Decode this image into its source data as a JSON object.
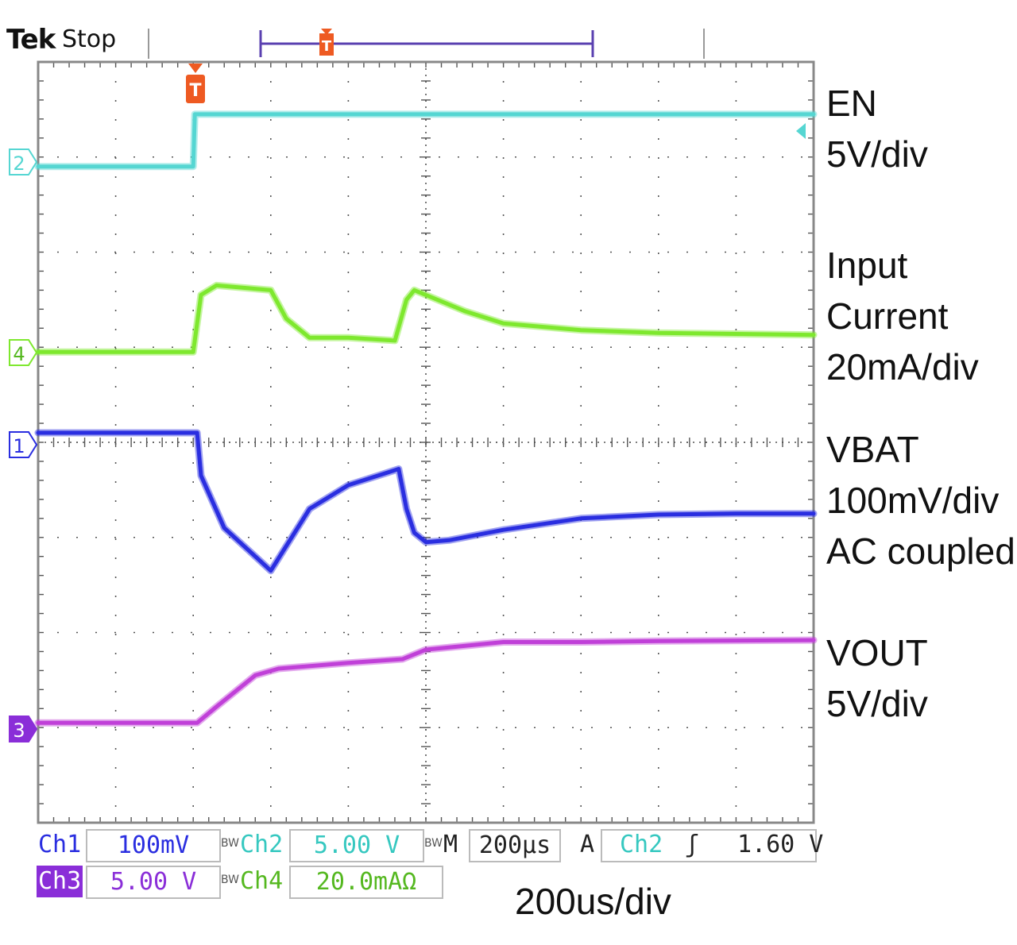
{
  "header": {
    "brand": "Tek",
    "status": "Stop"
  },
  "colors": {
    "ch1": "#2a2ee0",
    "ch2": "#55d6d2",
    "ch3": "#c040d8",
    "ch4": "#7ee82e",
    "trigger": "#ee5a22",
    "grid": "#555555",
    "frame": "#888888"
  },
  "chart_data": {
    "type": "line",
    "title": "",
    "grid": true,
    "x_unit": "div",
    "xlim": [
      0,
      10
    ],
    "ylim": [
      0,
      8
    ],
    "trigger_x_div": 2.0,
    "series": [
      {
        "name": "EN",
        "channel": "2",
        "scale": "5V/div",
        "x": [
          0,
          2.0,
          2.02,
          10
        ],
        "y": [
          6.9,
          6.9,
          7.45,
          7.45
        ]
      },
      {
        "name": "Input Current",
        "channel": "4",
        "scale": "20mA/div",
        "x": [
          0,
          2.0,
          2.1,
          2.3,
          3.0,
          3.2,
          3.5,
          4.0,
          4.6,
          4.75,
          4.85,
          5.0,
          5.5,
          6.0,
          7.0,
          8.0,
          9.0,
          10
        ],
        "y": [
          4.95,
          4.95,
          5.55,
          5.65,
          5.6,
          5.3,
          5.1,
          5.1,
          5.07,
          5.5,
          5.6,
          5.55,
          5.38,
          5.25,
          5.18,
          5.15,
          5.14,
          5.13
        ]
      },
      {
        "name": "VBAT",
        "channel": "1",
        "scale": "100mV/div",
        "coupling": "AC coupled",
        "x": [
          0,
          2.05,
          2.1,
          2.4,
          2.8,
          3.0,
          3.1,
          3.5,
          4.0,
          4.5,
          4.65,
          4.75,
          4.85,
          5.0,
          5.3,
          6.0,
          7.0,
          8.0,
          9.0,
          10
        ],
        "y": [
          4.1,
          4.1,
          3.65,
          3.1,
          2.8,
          2.65,
          2.78,
          3.3,
          3.55,
          3.68,
          3.72,
          3.3,
          3.05,
          2.95,
          2.97,
          3.08,
          3.2,
          3.24,
          3.25,
          3.25
        ]
      },
      {
        "name": "VOUT",
        "channel": "3",
        "scale": "5V/div",
        "x": [
          0,
          2.05,
          2.3,
          2.8,
          3.1,
          4.0,
          4.7,
          5.0,
          6.0,
          7.0,
          8.0,
          10
        ],
        "y": [
          1.05,
          1.05,
          1.22,
          1.55,
          1.62,
          1.68,
          1.72,
          1.82,
          1.9,
          1.9,
          1.91,
          1.92
        ]
      }
    ]
  },
  "labels": {
    "en": [
      "EN",
      "5V/div"
    ],
    "input": [
      "Input",
      "Current",
      "20mA/div"
    ],
    "vbat": [
      "VBAT",
      "100mV/div",
      "AC coupled"
    ],
    "vout": [
      "VOUT",
      "5V/div"
    ],
    "timebase": "200us/div"
  },
  "markers": {
    "ch1": "1",
    "ch2": "2",
    "ch3": "3",
    "ch4": "4",
    "trigger": "T"
  },
  "readouts": {
    "ch1_label": "Ch1",
    "ch1_value": "100mV",
    "ch2_label": "Ch2",
    "ch2_value": "5.00 V",
    "ch3_label": "Ch3",
    "ch3_value": "5.00 V",
    "ch4_label": "Ch4",
    "ch4_value": "20.0mAΩ",
    "bw_mark": "BW",
    "timebase_label": "M",
    "timebase_value": "200µs",
    "trigger_label": "A",
    "trigger_source": "Ch2",
    "trigger_slope": "ʃ",
    "trigger_level": "1.60 V"
  }
}
